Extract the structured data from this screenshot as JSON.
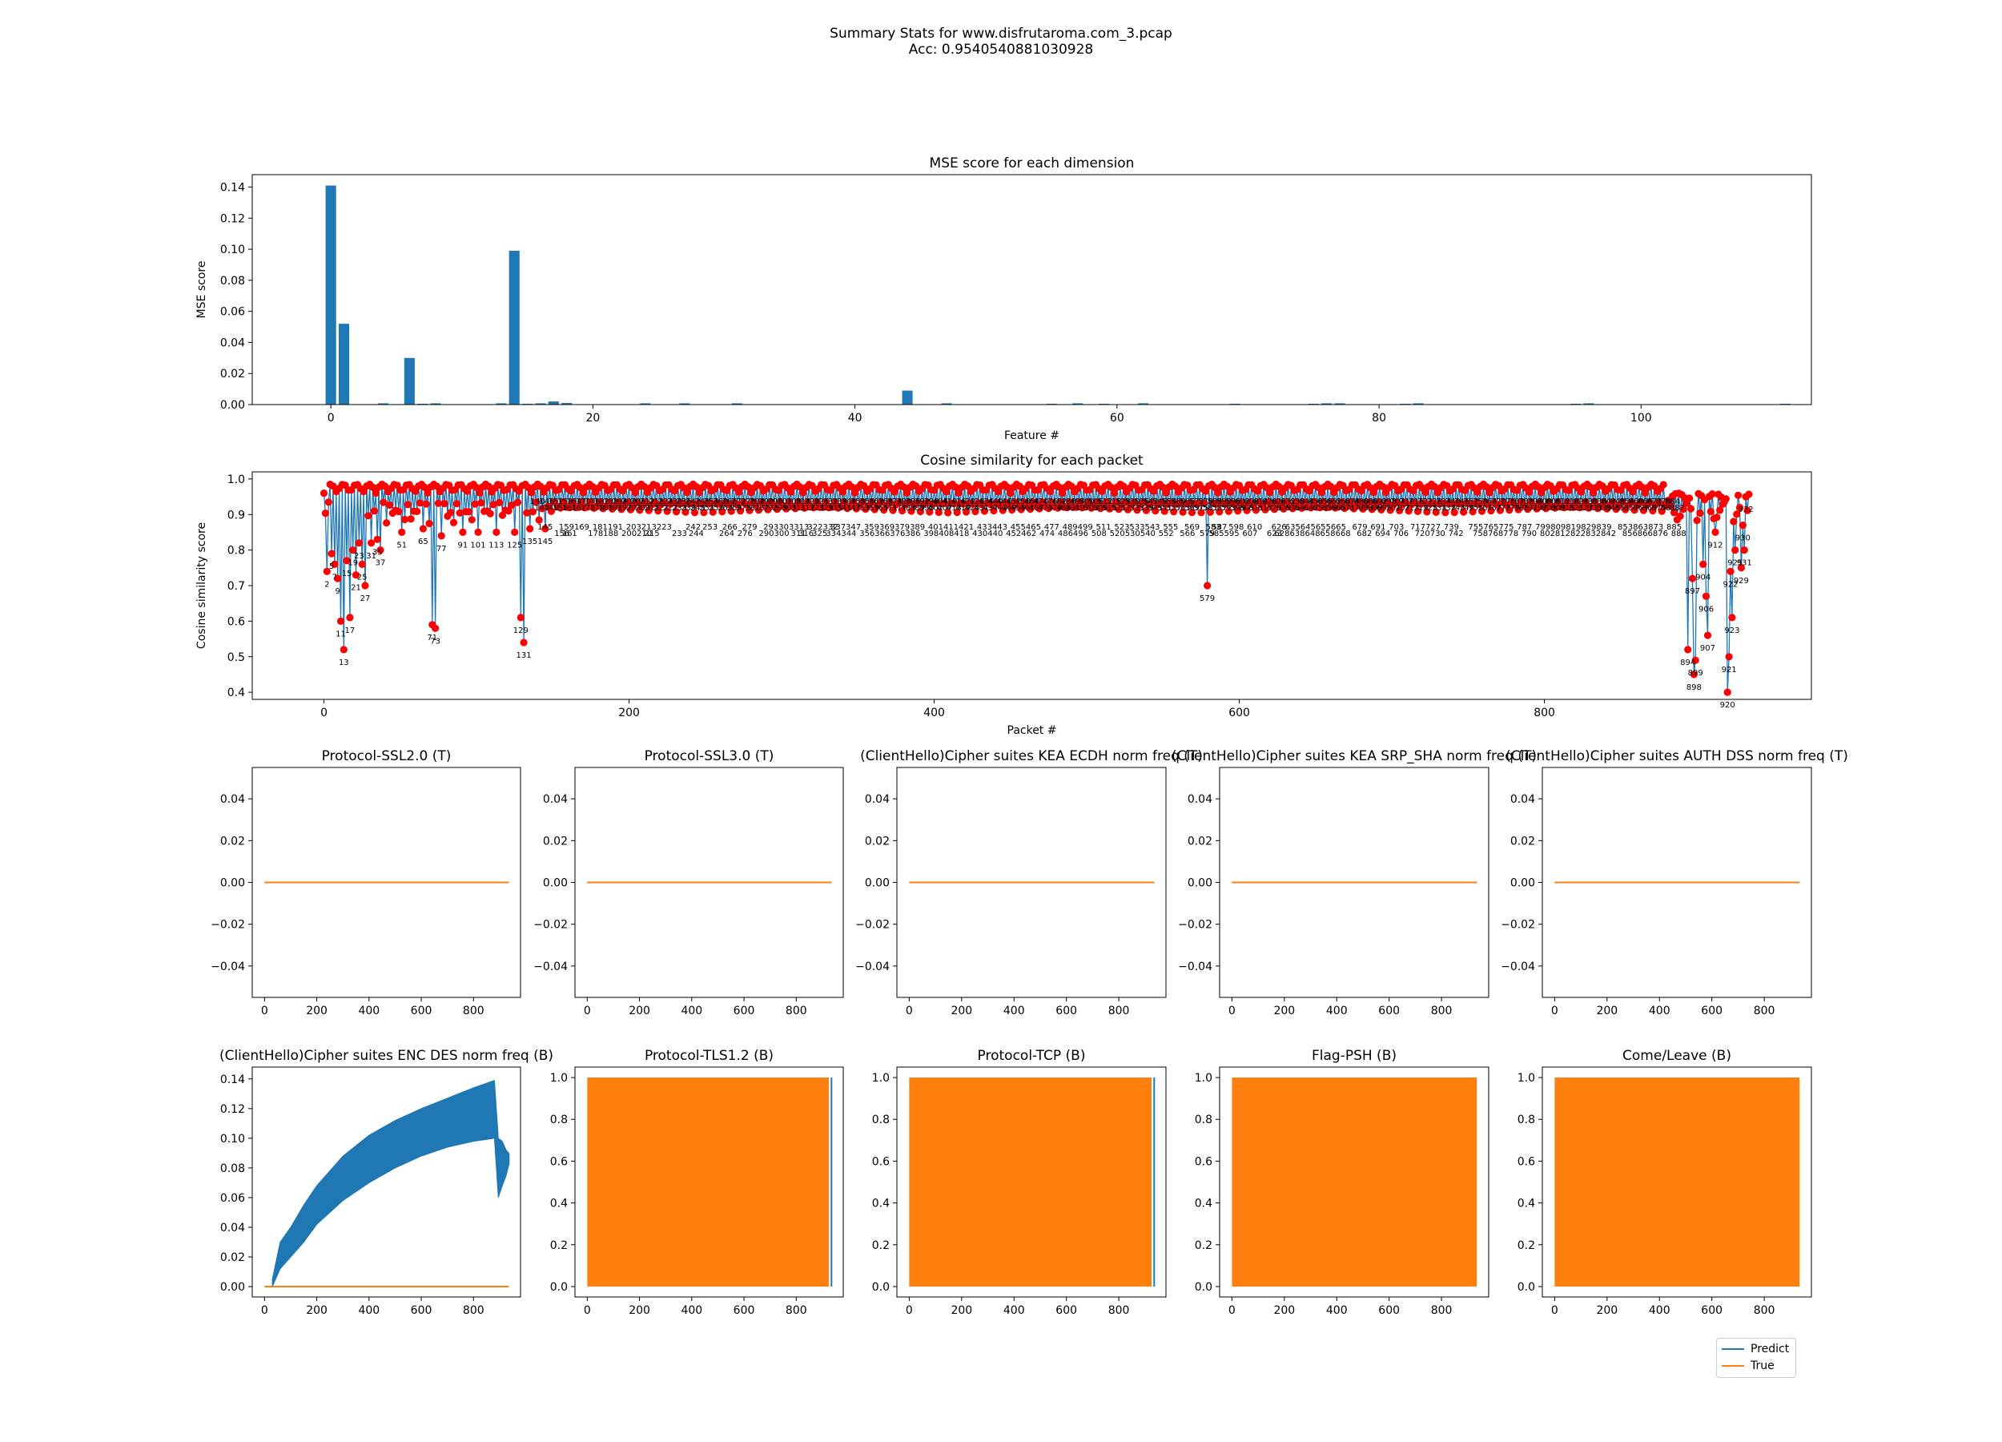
{
  "figure": {
    "suptitle_line1": "Summary Stats for www.disfrutaroma.com_3.pcap",
    "suptitle_line2": "Acc: 0.9540540881030928"
  },
  "colors": {
    "blue": "#1f77b4",
    "orange": "#ff7f0e",
    "red": "#ff0000"
  },
  "legend": {
    "predict": "Predict",
    "true": "True"
  },
  "chart_data": [
    {
      "id": "mse",
      "type": "bar",
      "title": "MSE score for each dimension",
      "xlabel": "Feature #",
      "ylabel": "MSE score",
      "xlim": [
        -6,
        113
      ],
      "ylim": [
        0,
        0.148
      ],
      "xticks": [
        0,
        20,
        40,
        60,
        80,
        100
      ],
      "yticks": [
        0.0,
        0.02,
        0.04,
        0.06,
        0.08,
        0.1,
        0.12,
        0.14
      ],
      "values": [
        0.141,
        0.052,
        0,
        0,
        0.0008,
        0,
        0.03,
        0.0005,
        0.0008,
        0,
        0,
        0,
        0,
        0.0008,
        0.099,
        0.0005,
        0.0008,
        0.002,
        0.001,
        0,
        0,
        0,
        0,
        0,
        0.0008,
        0,
        0,
        0.0008,
        0,
        0,
        0,
        0.0008,
        0,
        0,
        0,
        0,
        0,
        0,
        0,
        0,
        0,
        0,
        0,
        0,
        0.009,
        0,
        0,
        0.0008,
        0,
        0,
        0,
        0,
        0,
        0,
        0,
        0.0005,
        0,
        0.0008,
        0,
        0.0005,
        0,
        0,
        0.0008,
        0,
        0,
        0,
        0,
        0,
        0,
        0.0005,
        0,
        0,
        0,
        0,
        0,
        0.0005,
        0.0008,
        0.0008,
        0,
        0,
        0,
        0,
        0.0005,
        0.0008,
        0,
        0,
        0,
        0,
        0,
        0,
        0,
        0,
        0,
        0,
        0,
        0.0005,
        0.0008,
        0,
        0,
        0,
        0,
        0,
        0,
        0,
        0,
        0,
        0,
        0,
        0,
        0,
        0,
        0.0005
      ]
    },
    {
      "id": "cosine",
      "type": "line",
      "title": "Cosine similarity for each packet",
      "xlabel": "Packet #",
      "ylabel": "Cosine similarity score",
      "xlim": [
        -47,
        975
      ],
      "ylim": [
        0.38,
        1.02
      ],
      "xticks": [
        0,
        200,
        400,
        600,
        800
      ],
      "yticks": [
        0.4,
        0.5,
        0.6,
        0.7,
        0.8,
        0.9,
        1.0
      ],
      "n_points": 935,
      "baseline": 0.955,
      "dips": [
        {
          "x": 2,
          "y": 0.74
        },
        {
          "x": 5,
          "y": 0.79
        },
        {
          "x": 7,
          "y": 0.76
        },
        {
          "x": 9,
          "y": 0.72
        },
        {
          "x": 11,
          "y": 0.6
        },
        {
          "x": 13,
          "y": 0.52
        },
        {
          "x": 15,
          "y": 0.77
        },
        {
          "x": 17,
          "y": 0.61
        },
        {
          "x": 19,
          "y": 0.8
        },
        {
          "x": 21,
          "y": 0.73
        },
        {
          "x": 23,
          "y": 0.82
        },
        {
          "x": 25,
          "y": 0.76
        },
        {
          "x": 27,
          "y": 0.7
        },
        {
          "x": 31,
          "y": 0.82
        },
        {
          "x": 35,
          "y": 0.83
        },
        {
          "x": 37,
          "y": 0.8
        },
        {
          "x": 51,
          "y": 0.85
        },
        {
          "x": 65,
          "y": 0.86
        },
        {
          "x": 71,
          "y": 0.59
        },
        {
          "x": 73,
          "y": 0.58
        },
        {
          "x": 77,
          "y": 0.84
        },
        {
          "x": 91,
          "y": 0.85
        },
        {
          "x": 101,
          "y": 0.85
        },
        {
          "x": 113,
          "y": 0.85
        },
        {
          "x": 125,
          "y": 0.85
        },
        {
          "x": 129,
          "y": 0.61
        },
        {
          "x": 131,
          "y": 0.54
        },
        {
          "x": 135,
          "y": 0.86
        },
        {
          "x": 145,
          "y": 0.86
        },
        {
          "x": 579,
          "y": 0.7
        },
        {
          "x": 894,
          "y": 0.52
        },
        {
          "x": 897,
          "y": 0.72
        },
        {
          "x": 898,
          "y": 0.45
        },
        {
          "x": 899,
          "y": 0.49
        },
        {
          "x": 904,
          "y": 0.76
        },
        {
          "x": 906,
          "y": 0.67
        },
        {
          "x": 907,
          "y": 0.56
        },
        {
          "x": 912,
          "y": 0.85
        },
        {
          "x": 920,
          "y": 0.4
        },
        {
          "x": 921,
          "y": 0.5
        },
        {
          "x": 922,
          "y": 0.74
        },
        {
          "x": 923,
          "y": 0.61
        },
        {
          "x": 925,
          "y": 0.8
        },
        {
          "x": 929,
          "y": 0.75
        },
        {
          "x": 930,
          "y": 0.87
        },
        {
          "x": 931,
          "y": 0.8
        },
        {
          "x": 932,
          "y": 0.95
        }
      ],
      "low_row_labels": [
        145,
        156,
        159,
        161,
        169,
        178,
        181,
        188,
        191,
        200,
        203,
        210,
        213,
        215,
        223,
        233,
        242,
        244,
        253,
        264,
        266,
        276,
        279,
        290,
        293,
        300,
        303,
        311,
        313,
        316,
        322,
        325,
        332,
        334,
        337,
        344,
        347,
        356,
        359,
        366,
        369,
        376,
        379,
        386,
        389,
        398,
        401,
        408,
        411,
        418,
        421,
        430,
        433,
        440,
        443,
        452,
        455,
        462,
        465,
        474,
        477,
        486,
        489,
        496,
        499,
        508,
        511,
        520,
        523,
        530,
        533,
        540,
        543,
        552,
        555,
        566,
        569,
        579,
        583,
        585,
        587,
        595,
        598,
        607,
        610,
        623,
        626,
        628,
        635,
        638,
        645,
        648,
        655,
        658,
        665,
        668,
        679,
        682,
        691,
        694,
        703,
        706,
        717,
        720,
        727,
        730,
        739,
        742,
        755,
        758,
        765,
        768,
        775,
        778,
        787,
        790,
        799,
        802,
        809,
        812,
        819,
        822,
        829,
        832,
        839,
        842,
        853,
        856,
        863,
        866,
        873,
        876,
        885,
        888
      ]
    },
    {
      "id": "p1",
      "type": "line",
      "title": "Protocol-SSL2.0 (T)",
      "xlim": [
        -47,
        980
      ],
      "ylim": [
        -0.055,
        0.055
      ],
      "xticks": [
        0,
        200,
        400,
        600,
        800
      ],
      "yticks": [
        -0.04,
        -0.02,
        0.0,
        0.02,
        0.04
      ],
      "ytick_labels": [
        "−0.04",
        "−0.02",
        "0.00",
        "0.02",
        "0.04"
      ],
      "series": [
        {
          "name": "Predict",
          "kind": "flat",
          "value": 0
        },
        {
          "name": "True",
          "kind": "flat",
          "value": 0
        }
      ]
    },
    {
      "id": "p2",
      "type": "line",
      "title": "Protocol-SSL3.0 (T)",
      "xlim": [
        -47,
        980
      ],
      "ylim": [
        -0.055,
        0.055
      ],
      "xticks": [
        0,
        200,
        400,
        600,
        800
      ],
      "yticks": [
        -0.04,
        -0.02,
        0.0,
        0.02,
        0.04
      ],
      "ytick_labels": [
        "−0.04",
        "−0.02",
        "0.00",
        "0.02",
        "0.04"
      ],
      "series": [
        {
          "name": "Predict",
          "kind": "flat",
          "value": 0
        },
        {
          "name": "True",
          "kind": "flat",
          "value": 0
        }
      ]
    },
    {
      "id": "p3",
      "type": "line",
      "title": "(ClientHello)Cipher suites KEA ECDH norm freq (T)",
      "xlim": [
        -47,
        980
      ],
      "ylim": [
        -0.055,
        0.055
      ],
      "xticks": [
        0,
        200,
        400,
        600,
        800
      ],
      "yticks": [
        -0.04,
        -0.02,
        0.0,
        0.02,
        0.04
      ],
      "ytick_labels": [
        "−0.04",
        "−0.02",
        "0.00",
        "0.02",
        "0.04"
      ],
      "series": [
        {
          "name": "Predict",
          "kind": "flat",
          "value": 0
        },
        {
          "name": "True",
          "kind": "flat",
          "value": 0
        }
      ]
    },
    {
      "id": "p4",
      "type": "line",
      "title": "(ClientHello)Cipher suites KEA SRP_SHA norm freq (T)",
      "xlim": [
        -47,
        980
      ],
      "ylim": [
        -0.055,
        0.055
      ],
      "xticks": [
        0,
        200,
        400,
        600,
        800
      ],
      "yticks": [
        -0.04,
        -0.02,
        0.0,
        0.02,
        0.04
      ],
      "ytick_labels": [
        "−0.04",
        "−0.02",
        "0.00",
        "0.02",
        "0.04"
      ],
      "series": [
        {
          "name": "Predict",
          "kind": "flat",
          "value": 0
        },
        {
          "name": "True",
          "kind": "flat",
          "value": 0
        }
      ]
    },
    {
      "id": "p5",
      "type": "line",
      "title": "(ClientHello)Cipher suites AUTH DSS norm freq (T)",
      "xlim": [
        -47,
        980
      ],
      "ylim": [
        -0.055,
        0.055
      ],
      "xticks": [
        0,
        200,
        400,
        600,
        800
      ],
      "yticks": [
        -0.04,
        -0.02,
        0.0,
        0.02,
        0.04
      ],
      "ytick_labels": [
        "−0.04",
        "−0.02",
        "0.00",
        "0.02",
        "0.04"
      ],
      "series": [
        {
          "name": "Predict",
          "kind": "flat",
          "value": 0
        },
        {
          "name": "True",
          "kind": "flat",
          "value": 0
        }
      ]
    },
    {
      "id": "p6",
      "type": "line",
      "title": "(ClientHello)Cipher suites ENC DES norm freq (B)",
      "xlim": [
        -47,
        980
      ],
      "ylim": [
        -0.007,
        0.148
      ],
      "xticks": [
        0,
        200,
        400,
        600,
        800
      ],
      "yticks": [
        0.0,
        0.02,
        0.04,
        0.06,
        0.08,
        0.1,
        0.12,
        0.14
      ],
      "ytick_labels": [
        "0.00",
        "0.02",
        "0.04",
        "0.06",
        "0.08",
        "0.10",
        "0.12",
        "0.14"
      ],
      "series": [
        {
          "name": "Predict",
          "kind": "band",
          "points": [
            {
              "x": 30,
              "lo": 0.0,
              "hi": 0.005
            },
            {
              "x": 60,
              "lo": 0.012,
              "hi": 0.03
            },
            {
              "x": 100,
              "lo": 0.02,
              "hi": 0.04
            },
            {
              "x": 150,
              "lo": 0.03,
              "hi": 0.055
            },
            {
              "x": 200,
              "lo": 0.042,
              "hi": 0.068
            },
            {
              "x": 300,
              "lo": 0.058,
              "hi": 0.088
            },
            {
              "x": 400,
              "lo": 0.07,
              "hi": 0.102
            },
            {
              "x": 500,
              "lo": 0.08,
              "hi": 0.112
            },
            {
              "x": 600,
              "lo": 0.088,
              "hi": 0.12
            },
            {
              "x": 700,
              "lo": 0.094,
              "hi": 0.127
            },
            {
              "x": 800,
              "lo": 0.098,
              "hi": 0.134
            },
            {
              "x": 880,
              "lo": 0.1,
              "hi": 0.139
            },
            {
              "x": 895,
              "lo": 0.06,
              "hi": 0.1
            },
            {
              "x": 910,
              "lo": 0.068,
              "hi": 0.098
            },
            {
              "x": 925,
              "lo": 0.075,
              "hi": 0.092
            },
            {
              "x": 935,
              "lo": 0.082,
              "hi": 0.09
            }
          ]
        },
        {
          "name": "True",
          "kind": "flat",
          "value": 0,
          "x0": 0,
          "x1": 935
        }
      ]
    },
    {
      "id": "p7",
      "type": "line",
      "title": "Protocol-TLS1.2 (B)",
      "xlim": [
        -47,
        980
      ],
      "ylim": [
        -0.05,
        1.05
      ],
      "xticks": [
        0,
        200,
        400,
        600,
        800
      ],
      "yticks": [
        0.0,
        0.2,
        0.4,
        0.6,
        0.8,
        1.0
      ],
      "ytick_labels": [
        "0.0",
        "0.2",
        "0.4",
        "0.6",
        "0.8",
        "1.0"
      ],
      "series": [
        {
          "name": "Predict",
          "kind": "edge",
          "x": 935
        },
        {
          "name": "True",
          "kind": "block",
          "x0": 0,
          "x1": 925,
          "lo": 0,
          "hi": 1
        }
      ]
    },
    {
      "id": "p8",
      "type": "line",
      "title": "Protocol-TCP (B)",
      "xlim": [
        -47,
        980
      ],
      "ylim": [
        -0.05,
        1.05
      ],
      "xticks": [
        0,
        200,
        400,
        600,
        800
      ],
      "yticks": [
        0.0,
        0.2,
        0.4,
        0.6,
        0.8,
        1.0
      ],
      "ytick_labels": [
        "0.0",
        "0.2",
        "0.4",
        "0.6",
        "0.8",
        "1.0"
      ],
      "series": [
        {
          "name": "Predict",
          "kind": "edge",
          "x": 935
        },
        {
          "name": "True",
          "kind": "block",
          "x0": 0,
          "x1": 925,
          "lo": 0,
          "hi": 1
        }
      ]
    },
    {
      "id": "p9",
      "type": "line",
      "title": "Flag-PSH (B)",
      "xlim": [
        -47,
        980
      ],
      "ylim": [
        -0.05,
        1.05
      ],
      "xticks": [
        0,
        200,
        400,
        600,
        800
      ],
      "yticks": [
        0.0,
        0.2,
        0.4,
        0.6,
        0.8,
        1.0
      ],
      "ytick_labels": [
        "0.0",
        "0.2",
        "0.4",
        "0.6",
        "0.8",
        "1.0"
      ],
      "series": [
        {
          "name": "Predict",
          "kind": "edge",
          "x": 930
        },
        {
          "name": "True",
          "kind": "block",
          "x0": 0,
          "x1": 935,
          "lo": 0,
          "hi": 1
        }
      ]
    },
    {
      "id": "p10",
      "type": "line",
      "title": "Come/Leave (B)",
      "xlim": [
        -47,
        980
      ],
      "ylim": [
        -0.05,
        1.05
      ],
      "xticks": [
        0,
        200,
        400,
        600,
        800
      ],
      "yticks": [
        0.0,
        0.2,
        0.4,
        0.6,
        0.8,
        1.0
      ],
      "ytick_labels": [
        "0.0",
        "0.2",
        "0.4",
        "0.6",
        "0.8",
        "1.0"
      ],
      "series": [
        {
          "name": "Predict",
          "kind": "none"
        },
        {
          "name": "True",
          "kind": "block",
          "x0": 0,
          "x1": 935,
          "lo": 0,
          "hi": 1
        }
      ]
    }
  ]
}
